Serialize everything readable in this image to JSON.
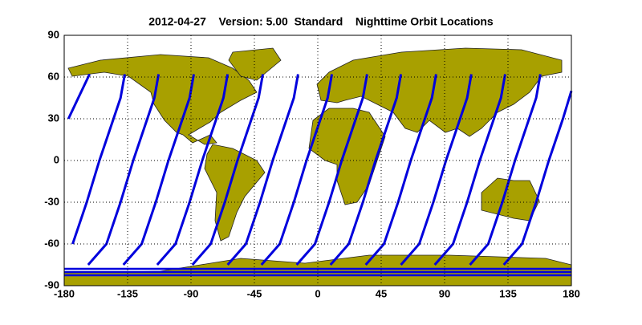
{
  "chart_data": {
    "type": "map",
    "title": "2012-04-27    Version: 5.00  Standard    Nighttime Orbit Locations",
    "xlim": [
      -180,
      180
    ],
    "ylim": [
      -90,
      90
    ],
    "xticks": [
      -180,
      -135,
      -90,
      -45,
      0,
      45,
      90,
      135,
      180
    ],
    "yticks": [
      -90,
      -60,
      -30,
      0,
      30,
      60,
      90
    ],
    "grid": true,
    "series": [
      {
        "color": "#0000dd",
        "x": [
          -177,
          -170,
          -162
        ],
        "values": [
          30,
          45,
          62
        ]
      },
      {
        "color": "#0000dd",
        "x": [
          -174,
          -164,
          -155,
          -145,
          -140,
          -137
        ],
        "values": [
          -60,
          -30,
          0,
          30,
          45,
          62
        ]
      },
      {
        "color": "#0000dd",
        "x": [
          -163,
          -150,
          -140,
          -131,
          -121,
          -116,
          -113
        ],
        "values": [
          -75,
          -60,
          -30,
          0,
          30,
          45,
          62
        ]
      },
      {
        "color": "#0000dd",
        "x": [
          -138,
          -125,
          -115,
          -106,
          -96,
          -91,
          -88
        ],
        "values": [
          -75,
          -60,
          -30,
          0,
          30,
          45,
          62
        ]
      },
      {
        "color": "#0000dd",
        "x": [
          -114,
          -101,
          -91,
          -82,
          -72,
          -67,
          -64
        ],
        "values": [
          -75,
          -60,
          -30,
          0,
          30,
          45,
          62
        ]
      },
      {
        "color": "#0000dd",
        "x": [
          -89,
          -76,
          -66,
          -57,
          -47,
          -42,
          -39
        ],
        "values": [
          -75,
          -60,
          -30,
          0,
          30,
          45,
          62
        ]
      },
      {
        "color": "#0000dd",
        "x": [
          -64,
          -51,
          -41,
          -32,
          -22,
          -17,
          -14
        ],
        "values": [
          -75,
          -60,
          -30,
          0,
          30,
          45,
          62
        ]
      },
      {
        "color": "#0000dd",
        "x": [
          -40,
          -27,
          -17,
          -8,
          2,
          7,
          10
        ],
        "values": [
          -75,
          -60,
          -30,
          0,
          30,
          45,
          62
        ]
      },
      {
        "color": "#0000dd",
        "x": [
          -15,
          -2,
          8,
          17,
          27,
          32,
          35
        ],
        "values": [
          -75,
          -60,
          -30,
          0,
          30,
          45,
          62
        ]
      },
      {
        "color": "#0000dd",
        "x": [
          9,
          22,
          32,
          41,
          51,
          56,
          59
        ],
        "values": [
          -75,
          -60,
          -30,
          0,
          30,
          45,
          62
        ]
      },
      {
        "color": "#0000dd",
        "x": [
          34,
          47,
          57,
          66,
          76,
          81,
          84
        ],
        "values": [
          -75,
          -60,
          -30,
          0,
          30,
          45,
          62
        ]
      },
      {
        "color": "#0000dd",
        "x": [
          59,
          72,
          82,
          91,
          101,
          106,
          109
        ],
        "values": [
          -75,
          -60,
          -30,
          0,
          30,
          45,
          62
        ]
      },
      {
        "color": "#0000dd",
        "x": [
          83,
          96,
          106,
          115,
          125,
          130,
          133
        ],
        "values": [
          -75,
          -60,
          -30,
          0,
          30,
          45,
          62
        ]
      },
      {
        "color": "#0000dd",
        "x": [
          108,
          121,
          131,
          140,
          150,
          155,
          158
        ],
        "values": [
          -75,
          -60,
          -30,
          0,
          30,
          45,
          62
        ]
      },
      {
        "color": "#0000dd",
        "x": [
          132,
          145,
          155,
          164,
          174,
          180
        ],
        "values": [
          -75,
          -60,
          -30,
          0,
          30,
          50
        ]
      }
    ]
  }
}
